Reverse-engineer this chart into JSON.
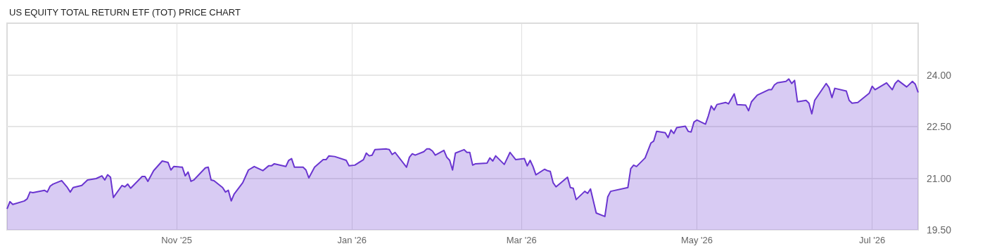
{
  "chart_data": {
    "type": "area",
    "title": "US EQUITY TOTAL RETURN ETF (TOT) PRICE CHART",
    "x": [
      "2025-09-03",
      "2025-09-04",
      "2025-09-05",
      "2025-09-09",
      "2025-09-10",
      "2025-09-11",
      "2025-09-12",
      "2025-09-16",
      "2025-09-17",
      "2025-09-18",
      "2025-09-19",
      "2025-09-22",
      "2025-09-24",
      "2025-09-25",
      "2025-09-26",
      "2025-09-29",
      "2025-10-01",
      "2025-10-04",
      "2025-10-06",
      "2025-10-07",
      "2025-10-08",
      "2025-10-09",
      "2025-10-10",
      "2025-10-13",
      "2025-10-14",
      "2025-10-15",
      "2025-10-16",
      "2025-10-20",
      "2025-10-21",
      "2025-10-22",
      "2025-10-24",
      "2025-10-27",
      "2025-10-29",
      "2025-10-30",
      "2025-10-31",
      "2025-11-03",
      "2025-11-04",
      "2025-11-05",
      "2025-11-06",
      "2025-11-07",
      "2025-11-11",
      "2025-11-12",
      "2025-11-13",
      "2025-11-14",
      "2025-11-17",
      "2025-11-18",
      "2025-11-19",
      "2025-11-20",
      "2025-11-21",
      "2025-11-24",
      "2025-11-26",
      "2025-11-28",
      "2025-12-01",
      "2025-12-03",
      "2025-12-04",
      "2025-12-05",
      "2025-12-09",
      "2025-12-10",
      "2025-12-11",
      "2025-12-12",
      "2025-12-15",
      "2025-12-16",
      "2025-12-17",
      "2025-12-19",
      "2025-12-22",
      "2025-12-23",
      "2025-12-24",
      "2025-12-26",
      "2025-12-30",
      "2025-12-31",
      "2026-01-02",
      "2026-01-05",
      "2026-01-06",
      "2026-01-07",
      "2026-01-08",
      "2026-01-09",
      "2026-01-13",
      "2026-01-14",
      "2026-01-15",
      "2026-01-16",
      "2026-01-20",
      "2026-01-21",
      "2026-01-22",
      "2026-01-23",
      "2026-01-26",
      "2026-01-27",
      "2026-01-28",
      "2026-01-29",
      "2026-01-30",
      "2026-02-02",
      "2026-02-03",
      "2026-02-04",
      "2026-02-05",
      "2026-02-06",
      "2026-02-09",
      "2026-02-10",
      "2026-02-11",
      "2026-02-12",
      "2026-02-13",
      "2026-02-17",
      "2026-02-18",
      "2026-02-19",
      "2026-02-20",
      "2026-02-23",
      "2026-02-25",
      "2026-02-27",
      "2026-03-02",
      "2026-03-03",
      "2026-03-04",
      "2026-03-05",
      "2026-03-06",
      "2026-03-09",
      "2026-03-10",
      "2026-03-11",
      "2026-03-12",
      "2026-03-13",
      "2026-03-17",
      "2026-03-18",
      "2026-03-19",
      "2026-03-20",
      "2026-03-23",
      "2026-03-24",
      "2026-03-25",
      "2026-03-27",
      "2026-03-30",
      "2026-03-31",
      "2026-04-01",
      "2026-04-07",
      "2026-04-08",
      "2026-04-09",
      "2026-04-10",
      "2026-04-13",
      "2026-04-15",
      "2026-04-16",
      "2026-04-17",
      "2026-04-20",
      "2026-04-21",
      "2026-04-22",
      "2026-04-23",
      "2026-04-24",
      "2026-04-27",
      "2026-04-28",
      "2026-04-29",
      "2026-04-30",
      "2026-05-01",
      "2026-05-04",
      "2026-05-05",
      "2026-05-06",
      "2026-05-07",
      "2026-05-08",
      "2026-05-11",
      "2026-05-12",
      "2026-05-14",
      "2026-05-15",
      "2026-05-18",
      "2026-05-19",
      "2026-05-20",
      "2026-05-22",
      "2026-05-26",
      "2026-05-27",
      "2026-05-28",
      "2026-05-29",
      "2026-06-01",
      "2026-06-02",
      "2026-06-03",
      "2026-06-04",
      "2026-06-05",
      "2026-06-08",
      "2026-06-09",
      "2026-06-10",
      "2026-06-11",
      "2026-06-15",
      "2026-06-16",
      "2026-06-17",
      "2026-06-18",
      "2026-06-22",
      "2026-06-23",
      "2026-06-24",
      "2026-06-26",
      "2026-06-30",
      "2026-07-01",
      "2026-07-02",
      "2026-07-06",
      "2026-07-08",
      "2026-07-09",
      "2026-07-10",
      "2026-07-13",
      "2026-07-15",
      "2026-07-16",
      "2026-07-17"
    ],
    "series": [
      {
        "color": "#6a35d0",
        "values": [
          20.11,
          20.32,
          20.24,
          20.34,
          20.4,
          20.6,
          20.58,
          20.65,
          20.6,
          20.77,
          20.83,
          20.93,
          20.73,
          20.6,
          20.73,
          20.79,
          20.95,
          20.99,
          21.07,
          20.95,
          21.1,
          21.03,
          20.44,
          20.79,
          20.75,
          20.83,
          20.71,
          21.05,
          21.05,
          20.91,
          21.22,
          21.5,
          21.46,
          21.24,
          21.34,
          21.32,
          21.07,
          21.18,
          20.91,
          20.95,
          21.3,
          21.32,
          20.95,
          20.93,
          20.73,
          20.6,
          20.65,
          20.34,
          20.54,
          20.87,
          21.24,
          21.34,
          21.22,
          21.36,
          21.36,
          21.42,
          21.34,
          21.52,
          21.57,
          21.32,
          21.32,
          21.24,
          21.01,
          21.32,
          21.54,
          21.54,
          21.65,
          21.63,
          21.52,
          21.36,
          21.38,
          21.54,
          21.73,
          21.65,
          21.67,
          21.83,
          21.85,
          21.83,
          21.69,
          21.75,
          21.32,
          21.61,
          21.71,
          21.67,
          21.77,
          21.85,
          21.85,
          21.79,
          21.67,
          21.81,
          21.61,
          21.52,
          21.24,
          21.73,
          21.83,
          21.75,
          21.75,
          21.38,
          21.42,
          21.44,
          21.59,
          21.5,
          21.65,
          21.4,
          21.75,
          21.54,
          21.57,
          21.36,
          21.52,
          21.34,
          21.1,
          21.26,
          21.22,
          21.2,
          20.87,
          20.75,
          21.03,
          20.73,
          20.71,
          20.38,
          20.62,
          20.56,
          20.69,
          19.99,
          19.89,
          20.46,
          20.62,
          20.73,
          21.28,
          21.38,
          21.34,
          21.59,
          22.02,
          22.08,
          22.36,
          22.32,
          22.18,
          22.4,
          22.3,
          22.47,
          22.51,
          22.36,
          22.34,
          22.63,
          22.69,
          22.57,
          22.81,
          23.1,
          22.98,
          23.14,
          23.2,
          23.16,
          23.45,
          23.14,
          23.12,
          22.96,
          23.22,
          23.41,
          23.57,
          23.57,
          23.71,
          23.77,
          23.81,
          23.88,
          23.75,
          23.84,
          23.22,
          23.26,
          23.18,
          22.87,
          23.26,
          23.75,
          23.63,
          23.34,
          23.61,
          23.53,
          23.26,
          23.18,
          23.2,
          23.47,
          23.67,
          23.57,
          23.77,
          23.57,
          23.75,
          23.84,
          23.65,
          23.81,
          23.73,
          23.49
        ]
      }
    ],
    "xlim": [
      "2025-09-03",
      "2026-07-17"
    ],
    "xticks": [
      {
        "value": "2025-11-01",
        "label": "Nov '25"
      },
      {
        "value": "2026-01-01",
        "label": "Jan '26"
      },
      {
        "value": "2026-03-01",
        "label": "Mar '26"
      },
      {
        "value": "2026-05-01",
        "label": "May '26"
      },
      {
        "value": "2026-07-01",
        "label": "Jul '26"
      }
    ],
    "ylim": [
      19.5,
      25.5
    ],
    "yticks": [
      {
        "value": 19.5,
        "label": "19.50"
      },
      {
        "value": 21,
        "label": "21.00"
      },
      {
        "value": 22.5,
        "label": "22.50"
      },
      {
        "value": 24,
        "label": "24.00"
      }
    ],
    "grid": true,
    "marker": "none"
  }
}
